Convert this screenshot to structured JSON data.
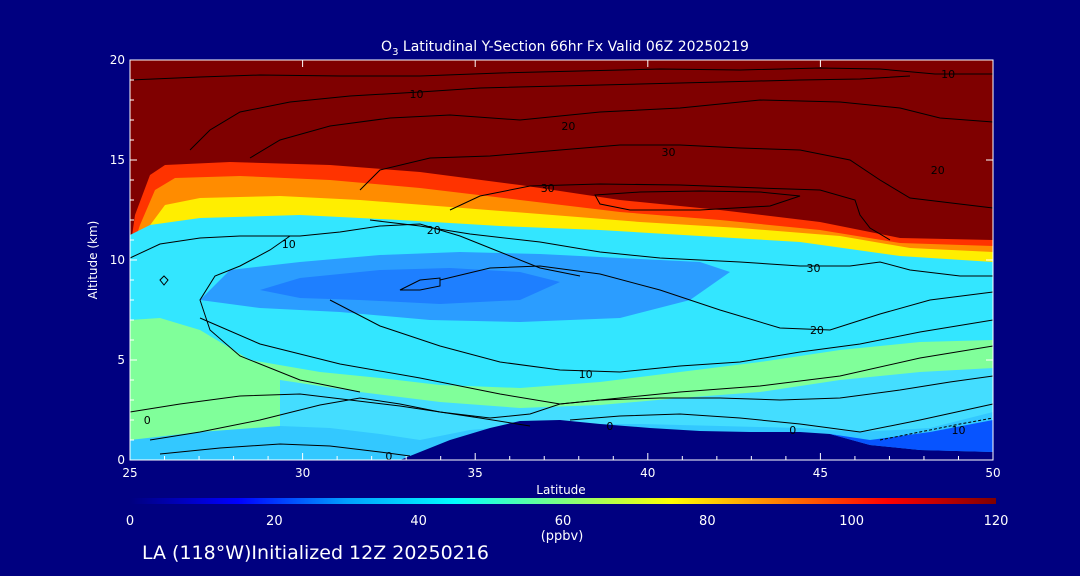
{
  "chart_data": {
    "type": "heatmap",
    "title": "O3 Latitudinal Y-Section 66hr  Fx Valid 06Z 20250219",
    "title_parts": {
      "pre": "O",
      "sub": "3",
      "post": " Latitudinal Y-Section 66hr  Fx Valid 06Z 20250219"
    },
    "xlabel": "Latitude",
    "ylabel": "Altitude (km)",
    "xlim": [
      25,
      50
    ],
    "ylim": [
      0,
      20
    ],
    "x_ticks": [
      "25",
      "30",
      "35",
      "40",
      "45",
      "50"
    ],
    "y_ticks": [
      "0",
      "5",
      "10",
      "15",
      "20"
    ],
    "colorbar": {
      "unit": "(ppbv)",
      "ticks": [
        "0",
        "20",
        "40",
        "60",
        "80",
        "100",
        "120"
      ],
      "range": [
        0,
        120
      ],
      "colormap": [
        "#00007f",
        "#0000ff",
        "#00a0ff",
        "#00ffff",
        "#7fff7f",
        "#ffff00",
        "#ff7f00",
        "#ff0000",
        "#7f0000"
      ]
    },
    "contour_labels": [
      {
        "text": "10",
        "lat": 48.7,
        "alt": 19.3
      },
      {
        "text": "10",
        "lat": 33.3,
        "alt": 18.3
      },
      {
        "text": "20",
        "lat": 37.7,
        "alt": 16.7
      },
      {
        "text": "30",
        "lat": 40.6,
        "alt": 15.4
      },
      {
        "text": "20",
        "lat": 48.4,
        "alt": 14.5
      },
      {
        "text": "30",
        "lat": 37.1,
        "alt": 13.6
      },
      {
        "text": "20",
        "lat": 33.8,
        "alt": 11.5
      },
      {
        "text": "10",
        "lat": 29.6,
        "alt": 10.8
      },
      {
        "text": "30",
        "lat": 44.8,
        "alt": 9.6
      },
      {
        "text": "20",
        "lat": 44.9,
        "alt": 6.5
      },
      {
        "text": "10",
        "lat": 38.2,
        "alt": 4.3
      },
      {
        "text": "0",
        "lat": 25.5,
        "alt": 2.0
      },
      {
        "text": "0",
        "lat": 38.9,
        "alt": 1.7
      },
      {
        "text": "0",
        "lat": 44.2,
        "alt": 1.5
      },
      {
        "text": "10",
        "lat": 49.0,
        "alt": 1.5
      },
      {
        "text": "0",
        "lat": 32.5,
        "alt": 0.2
      }
    ]
  },
  "footer": {
    "text": "LA (118°W)Initialized 12Z 20250216"
  },
  "colors": {
    "background": "#000080",
    "text": "#ffffff",
    "contour": "#000000"
  }
}
